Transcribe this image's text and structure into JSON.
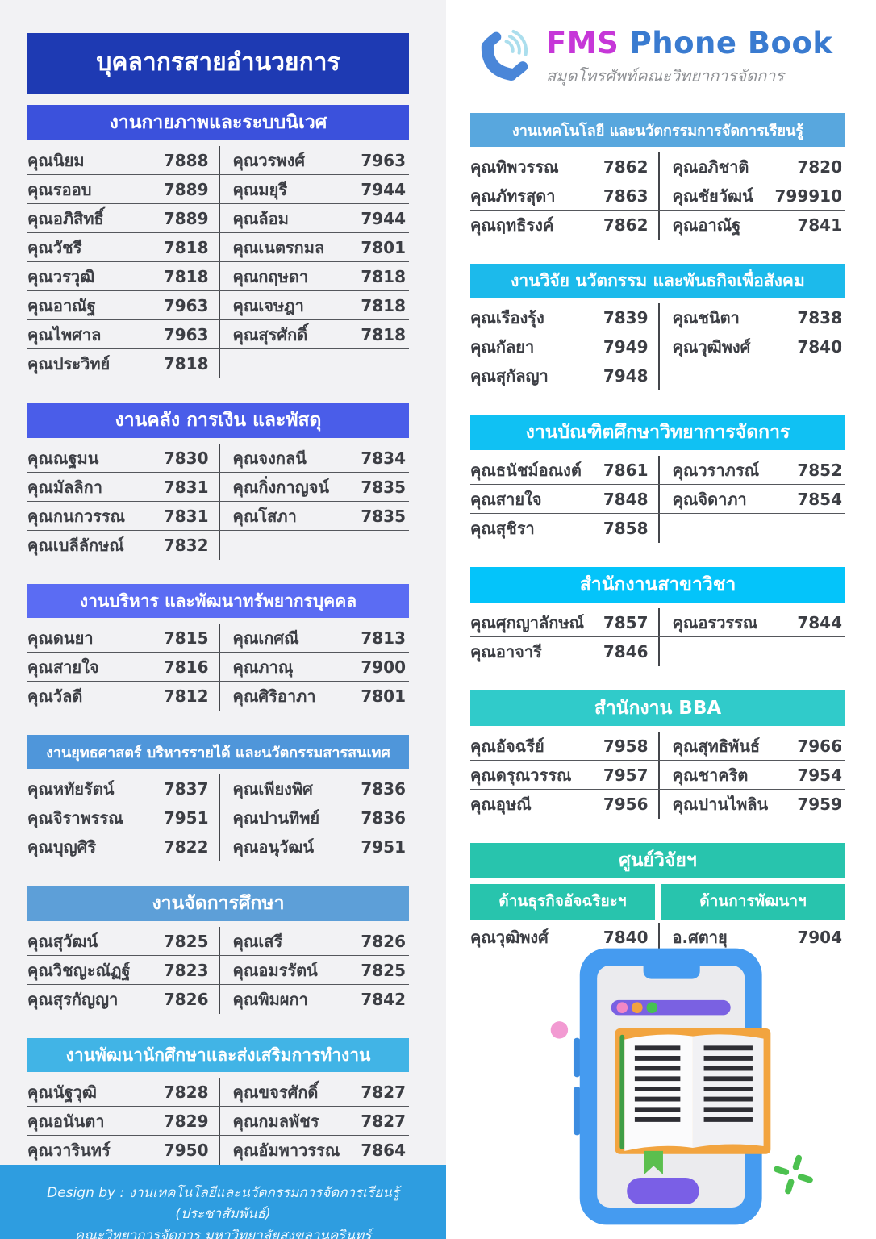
{
  "left_panel": {
    "main_header": "บุคลากรสายอำนวยการ",
    "main_header_color": "#1e3ab3",
    "sections": [
      {
        "title": "งานกายภาพและระบบนิเวศ",
        "color": "#3b51dc",
        "rows": [
          {
            "l": [
              "คุณนิยม",
              "7888"
            ],
            "r": [
              "คุณวรพงศ์",
              "7963"
            ]
          },
          {
            "l": [
              "คุณรออบ",
              "7889"
            ],
            "r": [
              "คุณมยุรี",
              "7944"
            ]
          },
          {
            "l": [
              "คุณอภิสิทธิ์",
              "7889"
            ],
            "r": [
              "คุณล้อม",
              "7944"
            ]
          },
          {
            "l": [
              "คุณวัชรี",
              "7818"
            ],
            "r": [
              "คุณเนตรกมล",
              "7801"
            ]
          },
          {
            "l": [
              "คุณวรวุฒิ",
              "7818"
            ],
            "r": [
              "คุณกฤษดา",
              "7818"
            ]
          },
          {
            "l": [
              "คุณอาณัฐ",
              "7963"
            ],
            "r": [
              "คุณเจษฎา",
              "7818"
            ]
          },
          {
            "l": [
              "คุณไพศาล",
              "7963"
            ],
            "r": [
              "คุณสุรศักดิ์",
              "7818"
            ]
          },
          {
            "l": [
              "คุณประวิทย์",
              "7818"
            ]
          }
        ]
      },
      {
        "title": "งานคลัง การเงิน และพัสดุ",
        "color": "#4a5de9",
        "rows": [
          {
            "l": [
              "คุณณฐมน",
              "7830"
            ],
            "r": [
              "คุณจงกลนี",
              "7834"
            ]
          },
          {
            "l": [
              "คุณมัลลิกา",
              "7831"
            ],
            "r": [
              "คุณกิ่งกาญจน์",
              "7835"
            ]
          },
          {
            "l": [
              "คุณกนกวรรณ",
              "7831"
            ],
            "r": [
              "คุณโสภา",
              "7835"
            ]
          },
          {
            "l": [
              "คุณเบลีลักษณ์",
              "7832"
            ]
          }
        ]
      },
      {
        "title": "งานบริหาร และพัฒนาทรัพยากรบุคคล",
        "color": "#5b6cf3",
        "rows": [
          {
            "l": [
              "คุณดนยา",
              "7815"
            ],
            "r": [
              "คุณเกศณี",
              "7813"
            ]
          },
          {
            "l": [
              "คุณสายใจ",
              "7816"
            ],
            "r": [
              "คุณภาณุ",
              "7900"
            ]
          },
          {
            "l": [
              "คุณวัลดี",
              "7812"
            ],
            "r": [
              "คุณศิริอาภา",
              "7801"
            ]
          }
        ]
      },
      {
        "title": "งานยุทธศาสตร์ บริหารรายได้ และนวัตกรรมสารสนเทศ",
        "color": "#4f96da",
        "rows": [
          {
            "l": [
              "คุณหทัยรัตน์",
              "7837"
            ],
            "r": [
              "คุณเพียงพิศ",
              "7836"
            ]
          },
          {
            "l": [
              "คุณจิราพรรณ",
              "7951"
            ],
            "r": [
              "คุณปานทิพย์",
              "7836"
            ]
          },
          {
            "l": [
              "คุณบุญศิริ",
              "7822"
            ],
            "r": [
              "คุณอนุวัฒน์",
              "7951"
            ]
          }
        ]
      },
      {
        "title": "งานจัดการศึกษา",
        "color": "#5d9fd8",
        "rows": [
          {
            "l": [
              "คุณสุวัฒน์",
              "7825"
            ],
            "r": [
              "คุณเสรี",
              "7826"
            ]
          },
          {
            "l": [
              "คุณวิชญะณัฏฐ์",
              "7823"
            ],
            "r": [
              "คุณอมรรัตน์",
              "7825"
            ]
          },
          {
            "l": [
              "คุณสุรกัญญา",
              "7826"
            ],
            "r": [
              "คุณพิมผกา",
              "7842"
            ]
          }
        ]
      },
      {
        "title": "งานพัฒนานักศึกษาและส่งเสริมการทำงาน",
        "color": "#41b4e6",
        "rows": [
          {
            "l": [
              "คุณนัฐวุฒิ",
              "7828"
            ],
            "r": [
              "คุณขจรศักดิ์",
              "7827"
            ]
          },
          {
            "l": [
              "คุณอนันตา",
              "7829"
            ],
            "r": [
              "คุณกมลพัชร",
              "7827"
            ]
          },
          {
            "l": [
              "คุณวารินทร์",
              "7950"
            ],
            "r": [
              "คุณอัมพาวรรณ",
              "7864"
            ]
          }
        ]
      }
    ],
    "footer": {
      "line1": "Design by : งานเทคโนโลยีและนวัตกรรมการจัดการเรียนรู้ (ประชาสัมพันธ์)",
      "line2": "คณะวิทยาการจัดการ มหาวิทยาลัยสงขลานครินทร์",
      "color": "#2e9de0"
    }
  },
  "right_panel": {
    "logo": {
      "brand_fms": "FMS",
      "brand_rest": "Phone Book",
      "subtitle": "สมุดโทรศัพท์คณะวิทยาการจัดการ",
      "fms_color": "#c637d8",
      "rest_color": "#3a7bd0",
      "icon_color": "#4a86d8",
      "waves_color": "#abdeed"
    },
    "sections": [
      {
        "title": "งานเทคโนโลยี และนวัตกรรมการจัดการเรียนรู้",
        "color": "#58a7de",
        "rows": [
          {
            "l": [
              "คุณทิพวรรณ",
              "7862"
            ],
            "r": [
              "คุณอภิชาติ",
              "7820"
            ]
          },
          {
            "l": [
              "คุณภัทรสุดา",
              "7863"
            ],
            "r": [
              "คุณชัยวัฒน์",
              "799910"
            ]
          },
          {
            "l": [
              "คุณฤทธิรงค์",
              "7862"
            ],
            "r": [
              "คุณอาณัฐ",
              "7841"
            ]
          }
        ]
      },
      {
        "title": "งานวิจัย นวัตกรรม และพันธกิจเพื่อสังคม",
        "color": "#1cbaeb",
        "rows": [
          {
            "l": [
              "คุณเรืองรุ้ง",
              "7839"
            ],
            "r": [
              "คุณชนิตา",
              "7838"
            ]
          },
          {
            "l": [
              "คุณกัลยา",
              "7949"
            ],
            "r": [
              "คุณวุฒิพงศ์",
              "7840"
            ]
          },
          {
            "l": [
              "คุณสุกัลญา",
              "7948"
            ]
          }
        ]
      },
      {
        "title": "งานบัณฑิตศึกษาวิทยาการจัดการ",
        "color": "#10c1f3",
        "rows": [
          {
            "l": [
              "คุณธนัชม์อณงต์",
              "7861"
            ],
            "r": [
              "คุณวราภรณ์",
              "7852"
            ]
          },
          {
            "l": [
              "คุณสายใจ",
              "7848"
            ],
            "r": [
              "คุณจิดาภา",
              "7854"
            ]
          },
          {
            "l": [
              "คุณสุชิรา",
              "7858"
            ]
          }
        ]
      },
      {
        "title": "สำนักงานสาขาวิชา",
        "color": "#04c4fa",
        "rows": [
          {
            "l": [
              "คุณศุกญาลักษณ์",
              "7857"
            ],
            "r": [
              "คุณอรวรรณ",
              "7844"
            ]
          },
          {
            "l": [
              "คุณอาจารี",
              "7846"
            ]
          }
        ]
      },
      {
        "title": "สำนักงาน BBA",
        "color": "#30cbca",
        "rows": [
          {
            "l": [
              "คุณอัจฉรีย์",
              "7958"
            ],
            "r": [
              "คุณสุทธิพันธ์",
              "7966"
            ]
          },
          {
            "l": [
              "คุณดรุณวรรณ",
              "7957"
            ],
            "r": [
              "คุณชาคริต",
              "7954"
            ]
          },
          {
            "l": [
              "คุณอุษณี",
              "7956"
            ],
            "r": [
              "คุณปานไพลิน",
              "7959"
            ]
          }
        ]
      },
      {
        "title": "ศูนย์วิจัยฯ",
        "color": "#28c4ad",
        "subheaders": [
          "ด้านธุรกิจอัจฉริยะฯ",
          "ด้านการพัฒนาฯ"
        ],
        "rows": [
          {
            "l": [
              "คุณวุฒิพงศ์",
              "7840"
            ],
            "r": [
              "อ.ศตายุ",
              "7904"
            ]
          }
        ]
      }
    ],
    "illustration_colors": {
      "phone_body": "#459bf0",
      "screen": "#ebebee",
      "browser_bar": "#7a61e2",
      "book_cover": "#f2a43f",
      "bookmark": "#5bbf4e",
      "button": "#7a5fe6",
      "accent_pink": "#f29ad2",
      "accent_green": "#4cc14f"
    }
  }
}
